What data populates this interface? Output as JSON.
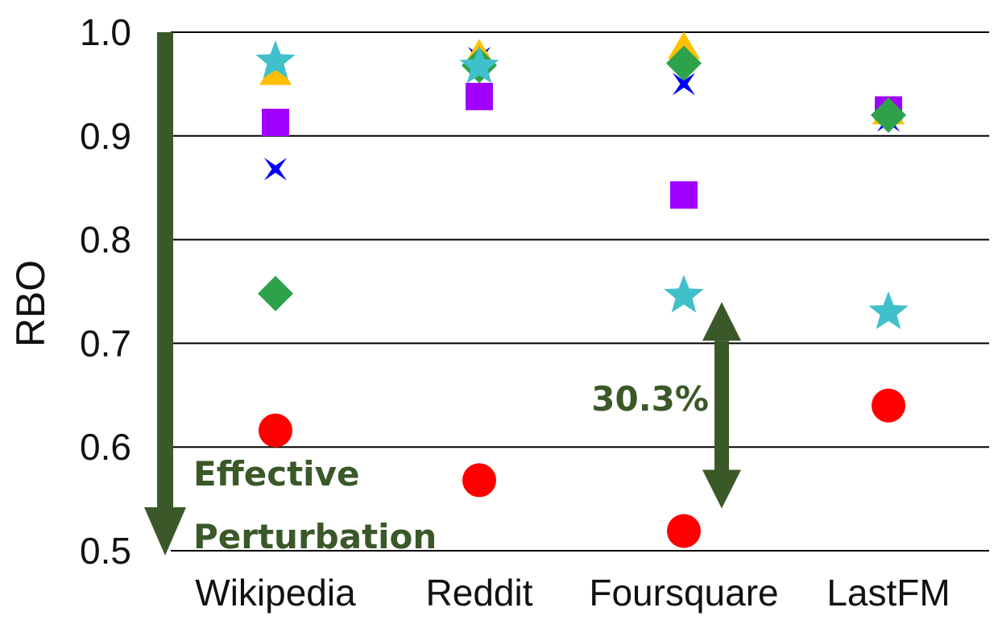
{
  "colors": {
    "grid": "#000000",
    "annotation": "#3B5828"
  },
  "chart_data": {
    "type": "scatter",
    "title": "",
    "xlabel": "",
    "ylabel": "RBO",
    "categories": [
      "Wikipedia",
      "Reddit",
      "Foursquare",
      "LastFM"
    ],
    "ylim": [
      0.5,
      1.0
    ],
    "yticks": [
      "0.5",
      "0.6",
      "0.7",
      "0.8",
      "0.9",
      "1.0"
    ],
    "grid": "horizontal",
    "legend": "none",
    "series": [
      {
        "marker": "circle",
        "color": "#FF0000",
        "values": [
          0.616,
          0.568,
          0.519,
          0.64
        ]
      },
      {
        "marker": "x",
        "color": "#0000FF",
        "values": [
          0.868,
          0.975,
          0.95,
          0.915
        ]
      },
      {
        "marker": "square",
        "color": "#A000FF",
        "values": [
          0.913,
          0.938,
          0.843,
          0.925
        ]
      },
      {
        "marker": "triangle",
        "color": "#FFC000",
        "values": [
          0.96,
          0.978,
          0.985,
          0.922
        ]
      },
      {
        "marker": "diamond",
        "color": "#2EA24B",
        "values": [
          0.748,
          0.968,
          0.97,
          0.92
        ]
      },
      {
        "marker": "star",
        "color": "#40C0CB",
        "values": [
          0.972,
          0.967,
          0.746,
          0.73
        ]
      }
    ],
    "annotations": [
      {
        "text": "30.3%",
        "type": "double-arrow",
        "category": "Foursquare",
        "from": 0.519,
        "to": 0.746
      },
      {
        "text_lines": [
          "Effective",
          "Perturbation"
        ],
        "type": "down-arrow",
        "from": 1.0,
        "to": 0.5
      }
    ]
  }
}
